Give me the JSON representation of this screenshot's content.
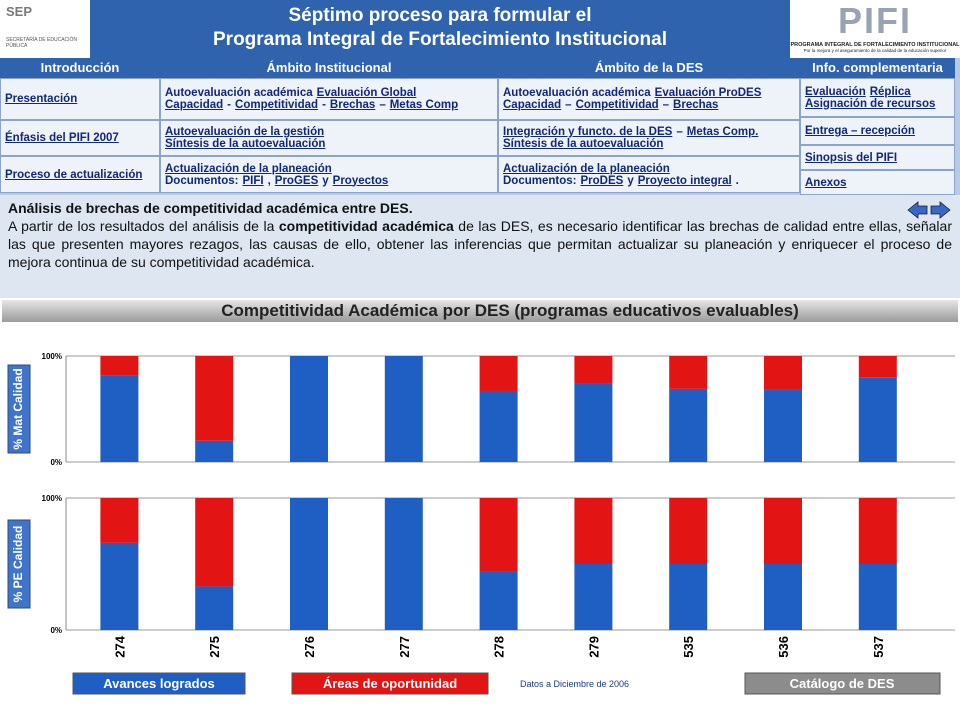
{
  "header": {
    "sep_logo": "SEP",
    "sep_name": "SECRETARÍA DE EDUCACIÓN PÚBLICA",
    "title_line1": "Séptimo proceso para formular el",
    "title_line2": "Programa Integral de Fortalecimiento Institucional",
    "pifi_logo": "PIFI",
    "pifi_name": "PROGRAMA INTEGRAL DE FORTALECIMIENTO INSTITUCIONAL",
    "pifi_tagline": "Por la mejora y el aseguramiento de la calidad de la educación superior"
  },
  "nav": {
    "columns": [
      {
        "header": "Introducción",
        "cells": [
          {
            "lines": [
              [
                {
                  "text": "Presentación",
                  "link": true
                }
              ]
            ]
          },
          {
            "lines": [
              [
                {
                  "text": "Énfasis del PIFI 2007",
                  "link": true
                }
              ]
            ]
          },
          {
            "lines": [
              [
                {
                  "text": "Proceso de actualización",
                  "link": true
                }
              ]
            ]
          }
        ]
      },
      {
        "header": "Ámbito Institucional",
        "cells": [
          {
            "lines": [
              [
                {
                  "text": "Autoevaluación académica",
                  "link": false
                },
                {
                  "text": "Evaluación Global",
                  "link": true
                }
              ],
              [
                {
                  "text": "Capacidad",
                  "link": true
                },
                {
                  "text": "-",
                  "link": false
                },
                {
                  "text": "Competitividad",
                  "link": true
                },
                {
                  "text": "-",
                  "link": false
                },
                {
                  "text": "Brechas",
                  "link": true
                },
                {
                  "text": "–",
                  "link": false
                },
                {
                  "text": "Metas Comp",
                  "link": true
                }
              ]
            ]
          },
          {
            "lines": [
              [
                {
                  "text": "Autoevaluación de la gestión",
                  "link": true
                }
              ],
              [
                {
                  "text": "Síntesis de la autoevaluación",
                  "link": true
                }
              ]
            ]
          },
          {
            "lines": [
              [
                {
                  "text": "Actualización de la planeación",
                  "link": true
                }
              ],
              [
                {
                  "text": "Documentos:",
                  "link": false
                },
                {
                  "text": "PIFI",
                  "link": true
                },
                {
                  "text": ",",
                  "link": false
                },
                {
                  "text": "ProGES",
                  "link": true
                },
                {
                  "text": "y",
                  "link": false
                },
                {
                  "text": "Proyectos",
                  "link": true
                }
              ]
            ]
          }
        ]
      },
      {
        "header": "Ámbito de la DES",
        "cells": [
          {
            "lines": [
              [
                {
                  "text": "Autoevaluación académica",
                  "link": false
                },
                {
                  "text": "Evaluación ProDES",
                  "link": true
                }
              ],
              [
                {
                  "text": "Capacidad",
                  "link": true
                },
                {
                  "text": "–",
                  "link": false
                },
                {
                  "text": "Competitividad",
                  "link": true
                },
                {
                  "text": "–",
                  "link": false
                },
                {
                  "text": "Brechas",
                  "link": true
                }
              ]
            ]
          },
          {
            "lines": [
              [
                {
                  "text": "Integración y functo. de la DES",
                  "link": true
                },
                {
                  "text": "–",
                  "link": false
                },
                {
                  "text": "Metas Comp.",
                  "link": true
                }
              ],
              [
                {
                  "text": "Síntesis de la autoevaluación",
                  "link": true
                }
              ]
            ]
          },
          {
            "lines": [
              [
                {
                  "text": "Actualización de la planeación",
                  "link": true
                }
              ],
              [
                {
                  "text": "Documentos:",
                  "link": false
                },
                {
                  "text": "ProDES",
                  "link": true
                },
                {
                  "text": "y",
                  "link": false
                },
                {
                  "text": "Proyecto integral",
                  "link": true
                },
                {
                  "text": ".",
                  "link": false
                }
              ]
            ]
          }
        ]
      },
      {
        "header": "Info. complementaria",
        "cells": [
          {
            "lines": [
              [
                {
                  "text": "Evaluación",
                  "link": true
                },
                {
                  "text": "Réplica",
                  "link": true
                }
              ],
              [
                {
                  "text": "Asignación de recursos",
                  "link": true
                }
              ]
            ]
          },
          {
            "lines": [
              [
                {
                  "text": "Entrega – recepción",
                  "link": true
                }
              ]
            ]
          },
          {
            "lines": [
              [
                {
                  "text": "Sinopsis del PIFI",
                  "link": true
                }
              ]
            ]
          },
          {
            "lines": [
              [
                {
                  "text": "Anexos",
                  "link": true
                }
              ]
            ]
          }
        ]
      }
    ]
  },
  "info": {
    "heading": "Análisis de brechas de competitividad académica entre DES.",
    "paragraph": [
      {
        "text": "A partir de los resultados del análisis de la ",
        "bold": false
      },
      {
        "text": "competitividad académica",
        "bold": true
      },
      {
        "text": " de las DES, es necesario identificar las brechas de calidad entre ellas, señalar las que presenten mayores rezagos, las causas de ello, obtener las inferencias que permitan actualizar su planeación y enriquecer el proceso de mejora continua de su competitividad académica.",
        "bold": false
      }
    ]
  },
  "banner": "Competitividad Académica por DES (programas educativos evaluables)",
  "chart_data": [
    {
      "type": "stacked_bar",
      "ylabel": "% Mat Calidad",
      "categories": [
        null,
        null,
        null,
        null,
        null,
        null,
        null,
        null,
        null
      ],
      "series": [
        {
          "name": "Avances logrados",
          "color": "#1f5fc4",
          "values": [
            82,
            20,
            100,
            100,
            67,
            74,
            69,
            68,
            80
          ]
        },
        {
          "name": "Áreas de oportunidad",
          "color": "#e31414",
          "values": [
            18,
            80,
            0,
            0,
            33,
            26,
            31,
            32,
            20
          ]
        }
      ],
      "ylim": [
        0,
        100
      ],
      "yticks": [
        {
          "value": 0,
          "label": "0%"
        },
        {
          "value": 100,
          "label": "100%"
        }
      ]
    },
    {
      "type": "stacked_bar",
      "ylabel": "% PE Calidad",
      "categories": [
        "274",
        "275",
        "276",
        "277",
        "278",
        "279",
        "535",
        "536",
        "537"
      ],
      "series": [
        {
          "color": "#1f5fc4",
          "values": [
            66,
            33,
            100,
            100,
            44,
            50,
            50,
            50,
            50
          ]
        },
        {
          "color": "#e31414",
          "values": [
            34,
            67,
            0,
            0,
            56,
            50,
            50,
            50,
            50
          ]
        }
      ],
      "ylim": [
        0,
        100
      ],
      "yticks": [
        {
          "value": 0,
          "label": "0%"
        },
        {
          "value": 100,
          "label": "100%"
        }
      ]
    }
  ],
  "footer": {
    "note": "Datos a Diciembre de 2006",
    "button": "Catálogo de DES"
  }
}
